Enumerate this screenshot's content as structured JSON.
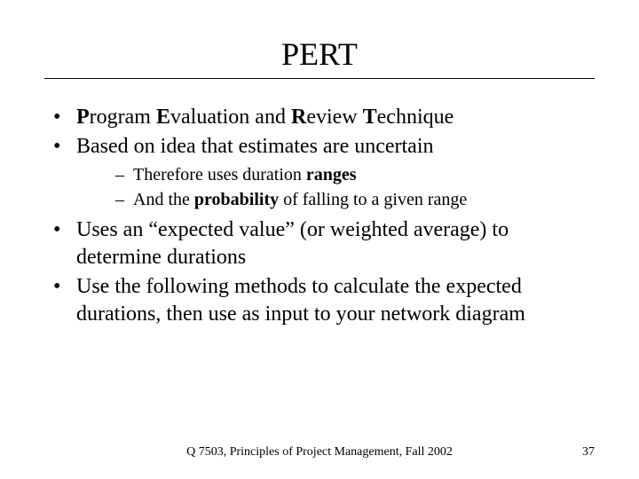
{
  "slide": {
    "title": "PERT",
    "bullets": [
      {
        "segments": [
          {
            "t": "P",
            "bold": true
          },
          {
            "t": "rogram "
          },
          {
            "t": "E",
            "bold": true
          },
          {
            "t": "valuation and "
          },
          {
            "t": "R",
            "bold": true
          },
          {
            "t": "eview "
          },
          {
            "t": "T",
            "bold": true
          },
          {
            "t": "echnique"
          }
        ]
      },
      {
        "segments": [
          {
            "t": "Based on idea that estimates are uncertain"
          }
        ],
        "sub": [
          {
            "segments": [
              {
                "t": "Therefore uses duration "
              },
              {
                "t": "ranges",
                "bold": true
              }
            ]
          },
          {
            "segments": [
              {
                "t": "And the "
              },
              {
                "t": "probability",
                "bold": true
              },
              {
                "t": " of falling to a given range"
              }
            ]
          }
        ]
      },
      {
        "segments": [
          {
            "t": "Uses an “expected value” (or weighted average) to determine durations"
          }
        ]
      },
      {
        "segments": [
          {
            "t": "Use the following methods to calculate the expected durations, then use as input to your network diagram"
          }
        ]
      }
    ],
    "footer_center": "Q 7503, Principles of Project Management, Fall 2002",
    "page_number": "37"
  },
  "style": {
    "background_color": "#ffffff",
    "text_color": "#000000",
    "rule_color": "#000000",
    "title_fontsize": 36,
    "bullet_fontsize": 24,
    "subbullet_fontsize": 20,
    "footer_fontsize": 14,
    "font_family": "Times New Roman"
  }
}
